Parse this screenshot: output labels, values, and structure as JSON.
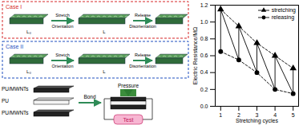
{
  "chart_data": {
    "type": "line",
    "xlabel": "Stretching cycles",
    "ylabel": "Electric Resistance/MΩ",
    "x": [
      1,
      2,
      3,
      4,
      5
    ],
    "xlim": [
      0.7,
      5.3
    ],
    "xticks": [
      1,
      2,
      3,
      4,
      5
    ],
    "ylim": [
      0,
      1.2
    ],
    "yticks": [
      {
        "value": 0,
        "label": "0.0"
      },
      0.2,
      0.4,
      0.6,
      0.8,
      {
        "value": 1,
        "label": "1.0"
      },
      1.2
    ],
    "legend": "top-right",
    "series": [
      {
        "name": "stretching",
        "color": "#000000",
        "marker": "triangle",
        "line_style": "dashed",
        "values": [
          1.15,
          0.95,
          0.75,
          0.6,
          0.45
        ]
      },
      {
        "name": "releasing",
        "color": "#000000",
        "marker": "circle",
        "line_style": "dashed",
        "values": [
          0.65,
          0.55,
          0.4,
          0.2,
          0.15
        ]
      }
    ]
  },
  "diagram": {
    "cases": [
      {
        "label": "Case I",
        "color": "#d62728",
        "stretch": "Stretch",
        "orientation": "Orientation",
        "release": "Release",
        "disorientation": "Disorientation",
        "length_start": "L₀",
        "length_stretched": "L"
      },
      {
        "label": "Case II",
        "color": "#1f4fbf",
        "stretch": "Stretch",
        "orientation": "Orientation",
        "release": "Release",
        "disorientation": "Disorientation",
        "length_start": "L₀",
        "length_stretched": "L"
      }
    ],
    "device": {
      "layers": [
        "PU/MWNTs",
        "PU",
        "PU/MWNTs"
      ],
      "bond": "Bond",
      "pressure": "Pressure",
      "test": "Test"
    }
  }
}
